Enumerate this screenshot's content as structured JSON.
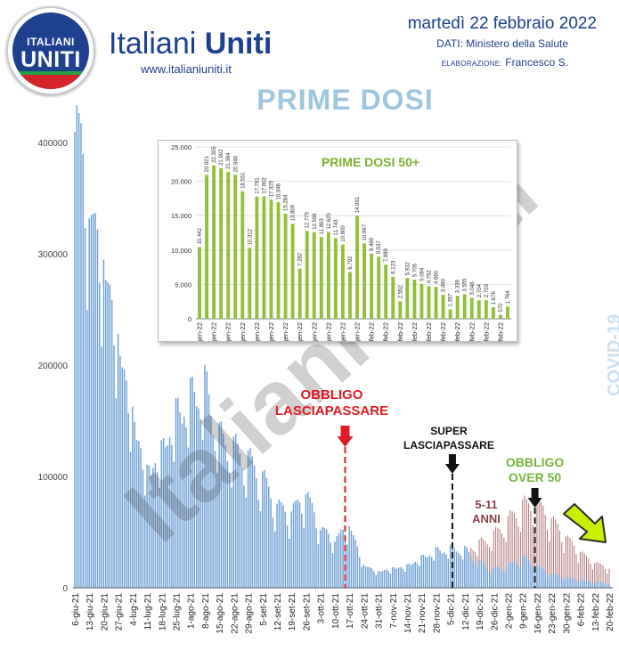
{
  "header": {
    "logo_line1": "ITALIANI",
    "logo_line2": "UNITI",
    "brand_light": "Italiani ",
    "brand_bold": "Uniti",
    "website": "www.italianiuniti.it",
    "date": "martedì 22 febbraio 2022",
    "source": "DATI: Ministero della Salute",
    "elaboration_label": "ELABORAZIONE:",
    "elaboration_author": "Francesco S."
  },
  "watermark": "Italiani Uniti",
  "side_label": "COVID-19",
  "colors": {
    "main_bar": "#6fa0d6",
    "overlay_bar": "#a05a5f",
    "inset_bar": "#92c03a",
    "red": "#e01b24",
    "green": "#75b53a",
    "navy": "#1f3f8f"
  },
  "annotations": {
    "obbligo_lp": [
      "OBBLIGO",
      "LASCIAPASSARE"
    ],
    "super_lp": [
      "SUPER",
      "LASCIAPASSARE"
    ],
    "obbligo_over50": [
      "OBBLIGO",
      "OVER 50"
    ],
    "age_5_11": [
      "5-11",
      "ANNI"
    ]
  },
  "chart_data": [
    {
      "type": "bar",
      "title": "PRIME DOSI",
      "xlabel": "",
      "ylabel": "",
      "ylim": [
        0,
        440000
      ],
      "yticks": [
        0,
        100000,
        200000,
        300000,
        400000
      ],
      "grid": false,
      "start_date": "2021-06-06",
      "end_date": "2022-02-20",
      "x_tick_labels": [
        "6-giu-21",
        "13-giu-21",
        "20-giu-21",
        "27-giu-21",
        "4-lug-21",
        "11-lug-21",
        "18-lug-21",
        "25-lug-21",
        "1-ago-21",
        "8-ago-21",
        "15-ago-21",
        "22-ago-21",
        "29-ago-21",
        "5-set-21",
        "12-set-21",
        "19-set-21",
        "26-set-21",
        "3-ott-21",
        "10-ott-21",
        "17-ott-21",
        "24-ott-21",
        "31-ott-21",
        "7-nov-21",
        "14-nov-21",
        "21-nov-21",
        "28-nov-21",
        "5-dic-21",
        "12-dic-21",
        "19-dic-21",
        "26-dic-21",
        "2-gen-22",
        "9-gen-22",
        "16-gen-22",
        "23-gen-22",
        "30-gen-22",
        "6-feb-22",
        "13-feb-22",
        "20-feb-22"
      ],
      "weekly_anchor_values": [
        420000,
        330000,
        285000,
        215000,
        150000,
        100000,
        118000,
        150000,
        165000,
        175000,
        130000,
        120000,
        110000,
        95000,
        70000,
        65000,
        82000,
        52000,
        42000,
        55000,
        20000,
        14000,
        17000,
        19000,
        26000,
        32000,
        34000,
        33000,
        22000,
        16000,
        19000,
        26000,
        19000,
        12000,
        9000,
        7000,
        5000,
        4000
      ],
      "series": [
        {
          "name": "5-11 ANNI",
          "start_date": "2021-12-15",
          "weekly_anchor_values": [
            8000,
            22000,
            34000,
            42000,
            48000,
            52000,
            42000,
            30000,
            20000,
            15000,
            12000
          ]
        }
      ],
      "events": [
        {
          "date": "2021-10-15",
          "label": "OBBLIGO LASCIAPASSARE"
        },
        {
          "date": "2021-12-06",
          "label": "SUPER LASCIAPASSARE"
        },
        {
          "date": "2022-01-15",
          "label": "OBBLIGO OVER 50"
        }
      ]
    },
    {
      "type": "bar",
      "title": "PRIME DOSI 50+",
      "xlabel": "",
      "ylabel": "",
      "ylim": [
        0,
        25000
      ],
      "yticks": [
        0,
        5000,
        10000,
        15000,
        20000,
        25000
      ],
      "ytick_labels": [
        "0",
        "5.000",
        "10.000",
        "15.000",
        "20.000",
        "25.000"
      ],
      "grid": true,
      "x_tick_labels": [
        "9-gen-22",
        "11-gen-22",
        "13-gen-22",
        "15-gen-22",
        "17-gen-22",
        "19-gen-22",
        "21-gen-22",
        "23-gen-22",
        "25-gen-22",
        "27-gen-22",
        "29-gen-22",
        "31-gen-22",
        "2-feb-22",
        "4-feb-22",
        "6-feb-22",
        "8-feb-22",
        "10-feb-22",
        "12-feb-22",
        "14-feb-22",
        "16-feb-22",
        "18-feb-22",
        "20-feb-22"
      ],
      "values": [
        10442,
        20921,
        22305,
        21902,
        21384,
        20946,
        18551,
        10312,
        17781,
        17802,
        17325,
        16946,
        15284,
        13809,
        7282,
        12775,
        12596,
        11893,
        12625,
        11743,
        10800,
        6792,
        14991,
        10967,
        9469,
        9037,
        7889,
        6123,
        2552,
        5932,
        5705,
        5084,
        4752,
        4660,
        3490,
        1357,
        3338,
        3555,
        3048,
        2704,
        2703,
        1676,
        570,
        1764
      ],
      "value_labels": [
        "10.442",
        "20.921",
        "22.305",
        "21.902",
        "21.384",
        "20.946",
        "18.551",
        "10.312",
        "17.781",
        "17.802",
        "17.325",
        "16.946",
        "15.284",
        "13.809",
        "7.282",
        "12.775",
        "12.596",
        "11.893",
        "12.625",
        "11.743",
        "10.800",
        "6.792",
        "14.991",
        "10.967",
        "9.469",
        "9.037",
        "7.889",
        "6.123",
        "2.552",
        "5.932",
        "5.705",
        "5.084",
        "4.752",
        "4.660",
        "3.490",
        "1.357",
        "3.338",
        "3.555",
        "3.048",
        "2.704",
        "2.703",
        "1.676",
        "570",
        "1.764"
      ]
    }
  ]
}
